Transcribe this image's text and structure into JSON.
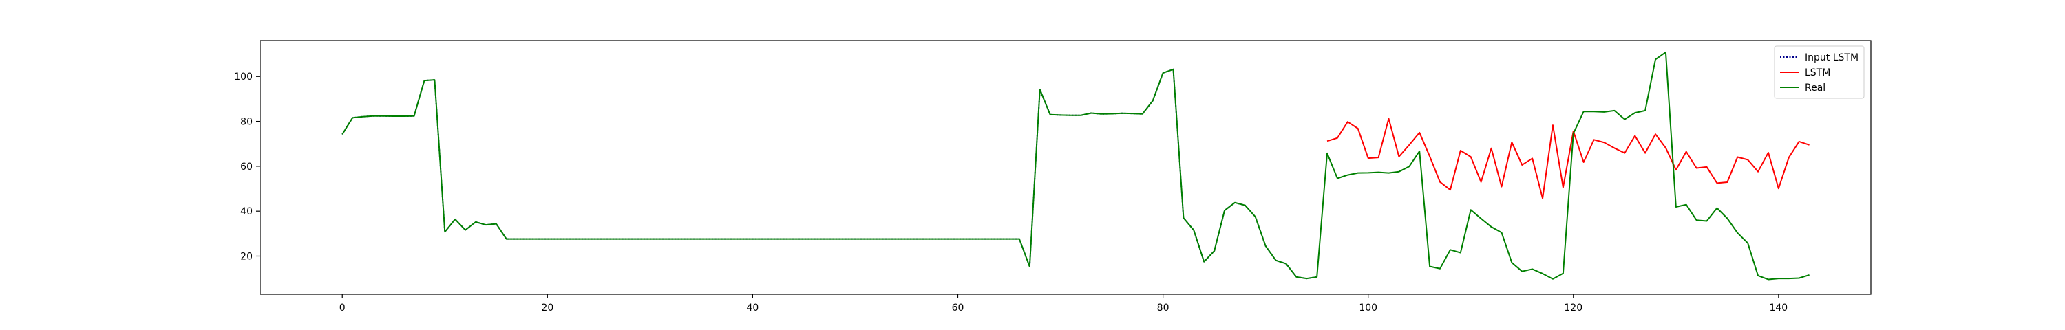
{
  "chart_data": {
    "type": "line",
    "title": "",
    "xlabel": "",
    "ylabel": "",
    "xlim": [
      -8,
      149
    ],
    "ylim": [
      3,
      116
    ],
    "xticks": [
      0,
      20,
      40,
      60,
      80,
      100,
      120,
      140
    ],
    "yticks": [
      20,
      40,
      60,
      80,
      100
    ],
    "grid": false,
    "legend_position": "top-right",
    "series": [
      {
        "name": "Input LSTM",
        "color": "#00008b",
        "style": "dotted",
        "x_start": 0,
        "values": [
          74.2,
          81.6,
          82.1,
          82.4,
          82.4,
          82.3,
          82.3,
          82.4,
          98.2,
          98.5,
          30.8,
          36.4,
          31.6,
          35.2,
          33.9,
          34.4,
          27.6,
          27.6,
          27.6,
          27.6,
          27.6,
          27.6,
          27.6,
          27.6,
          27.6,
          27.6,
          27.6,
          27.6,
          27.6,
          27.6,
          27.6,
          27.6,
          27.6,
          27.6,
          27.6,
          27.6,
          27.6,
          27.6,
          27.6,
          27.6,
          27.6,
          27.6,
          27.6,
          27.6,
          27.6,
          27.6,
          27.6,
          27.6,
          27.6,
          27.6,
          27.6,
          27.6,
          27.6,
          27.6,
          27.6,
          27.6,
          27.6,
          27.6,
          27.6,
          27.6,
          27.6,
          27.6,
          27.6,
          27.6,
          27.6,
          27.6,
          27.6,
          15.3,
          94.2,
          83.0,
          82.8,
          82.7,
          82.7,
          83.7,
          83.3,
          83.4,
          83.6,
          83.5,
          83.3,
          89.2,
          101.6,
          103.2,
          37.0,
          31.5,
          17.5,
          22.3,
          40.3,
          43.8,
          42.6,
          37.5,
          24.5,
          18.1,
          16.6,
          10.7,
          10.0,
          10.7
        ]
      },
      {
        "name": "LSTM",
        "color": "#ff0000",
        "style": "solid",
        "x_start": 96,
        "values": [
          71.2,
          72.6,
          79.8,
          76.8,
          63.6,
          63.9,
          81.2,
          64.3,
          69.5,
          75.0,
          64.4,
          53.0,
          49.5,
          67.0,
          64.2,
          53.0,
          68.0,
          50.9,
          70.7,
          60.6,
          63.5,
          45.7,
          78.3,
          50.6,
          75.6,
          61.8,
          71.8,
          70.6,
          68.1,
          65.9,
          73.6,
          65.9,
          74.3,
          68.2,
          58.4,
          66.5,
          59.2,
          59.7,
          52.5,
          52.9,
          64.1,
          62.9,
          57.6,
          66.1,
          50.1,
          63.9,
          71.0,
          69.5
        ]
      },
      {
        "name": "Real",
        "color": "#008000",
        "style": "solid",
        "x_start": 0,
        "values": [
          74.2,
          81.6,
          82.1,
          82.4,
          82.4,
          82.3,
          82.3,
          82.4,
          98.2,
          98.5,
          30.8,
          36.4,
          31.6,
          35.2,
          33.9,
          34.4,
          27.6,
          27.6,
          27.6,
          27.6,
          27.6,
          27.6,
          27.6,
          27.6,
          27.6,
          27.6,
          27.6,
          27.6,
          27.6,
          27.6,
          27.6,
          27.6,
          27.6,
          27.6,
          27.6,
          27.6,
          27.6,
          27.6,
          27.6,
          27.6,
          27.6,
          27.6,
          27.6,
          27.6,
          27.6,
          27.6,
          27.6,
          27.6,
          27.6,
          27.6,
          27.6,
          27.6,
          27.6,
          27.6,
          27.6,
          27.6,
          27.6,
          27.6,
          27.6,
          27.6,
          27.6,
          27.6,
          27.6,
          27.6,
          27.6,
          27.6,
          27.6,
          15.3,
          94.2,
          83.0,
          82.8,
          82.7,
          82.7,
          83.7,
          83.3,
          83.4,
          83.6,
          83.5,
          83.3,
          89.2,
          101.6,
          103.2,
          37.0,
          31.5,
          17.5,
          22.3,
          40.3,
          43.8,
          42.6,
          37.5,
          24.5,
          18.1,
          16.6,
          10.7,
          10.0,
          10.7,
          65.8,
          54.6,
          56.1,
          57.0,
          57.1,
          57.3,
          57.0,
          57.6,
          59.9,
          66.7,
          15.4,
          14.4,
          22.8,
          21.5,
          40.6,
          36.7,
          33.0,
          30.5,
          17.1,
          13.2,
          14.2,
          12.2,
          9.8,
          12.3,
          74.6,
          84.4,
          84.4,
          84.2,
          84.8,
          80.9,
          83.8,
          84.8,
          107.6,
          110.8,
          41.9,
          42.9,
          36.0,
          35.6,
          41.4,
          36.8,
          30.3,
          25.8,
          11.3,
          9.6,
          10.0,
          10.0,
          10.2,
          11.6
        ]
      }
    ]
  }
}
